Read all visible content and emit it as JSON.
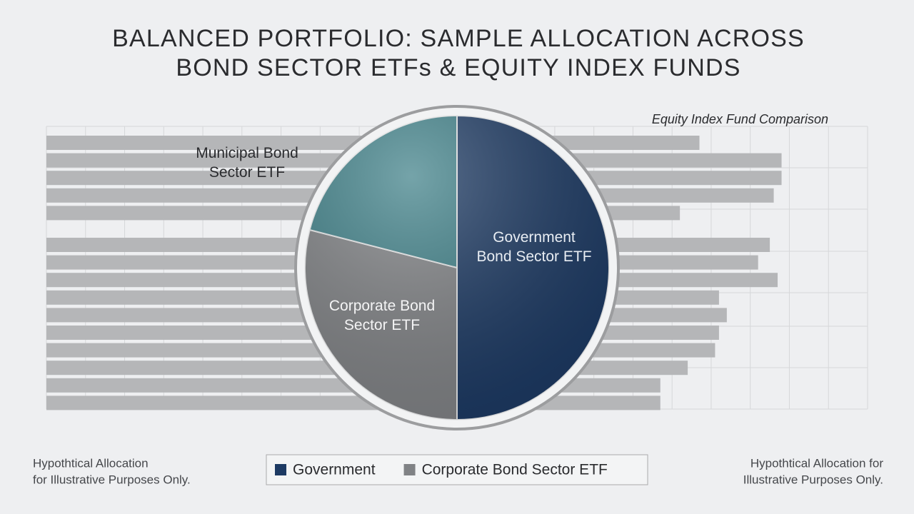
{
  "chart_data": [
    {
      "type": "pie",
      "title": [
        "BALANCED PORTFOLIO: SAMPLE ALLOCATION ACROSS",
        "BOND SECTOR ETFs & EQUITY INDEX FUNDS"
      ],
      "labels": [
        [
          "Government",
          "Bond Sector ETF"
        ],
        [
          "Corporate Bond",
          "Sector ETF"
        ],
        [
          "Municipal Bond",
          "Sector ETF"
        ]
      ],
      "values": [
        50,
        29,
        21
      ],
      "colors": [
        "#1d3a63",
        "#808285",
        "#3f8088"
      ],
      "legend": [
        {
          "name": "Government",
          "color": "#1d3a63"
        },
        {
          "name": "Corporate Bond Sector ETF",
          "color": "#808285"
        }
      ],
      "notes": [
        [
          "Hypothtical Allocation",
          "for Illustrative Purposes Only."
        ],
        [
          "Hypothtical Allocation for",
          "Illustrative Purposes Only."
        ]
      ]
    },
    {
      "type": "barh",
      "title": "Equity Index Fund Comparison",
      "categories": [
        null,
        null,
        null,
        null,
        null,
        null,
        null,
        null,
        null,
        null,
        null,
        null,
        null,
        null,
        null
      ],
      "values": [
        16.7,
        18.8,
        18.8,
        18.6,
        16.2,
        18.5,
        18.2,
        18.7,
        17.2,
        17.4,
        17.2,
        17.1,
        16.4,
        15.7,
        15.7
      ],
      "xlim": [
        0,
        21
      ],
      "color": "#b5b6b8"
    }
  ]
}
